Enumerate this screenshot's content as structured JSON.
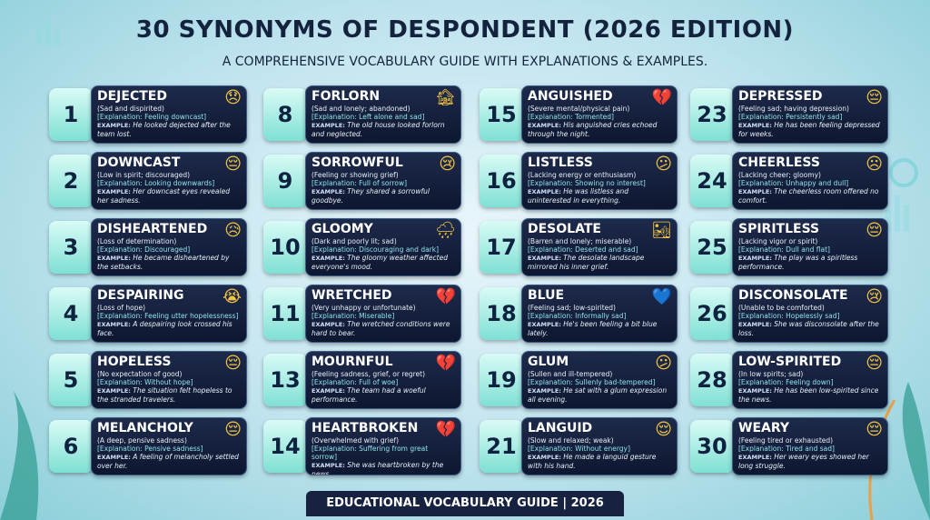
{
  "header": {
    "title": "30 SYNONYMS OF DESPONDENT (2026 EDITION)",
    "subtitle": "A COMPREHENSIVE VOCABULARY GUIDE WITH EXPLANATIONS & EXAMPLES."
  },
  "example_label": "EXAMPLE:",
  "columns": [
    {
      "cards": [
        {
          "number": 1,
          "word": "DEJECTED",
          "icon": "😞",
          "definition": "(Sad and dispirited)",
          "explanation": "[Explanation: Feeling downcast]",
          "example": "He looked dejected after the team lost."
        },
        {
          "number": 2,
          "word": "DOWNCAST",
          "icon": "😔",
          "definition": "(Low in spirit; discouraged)",
          "explanation": "[Explanation: Looking downwards]",
          "example": "Her downcast eyes revealed her sadness."
        },
        {
          "number": 3,
          "word": "DISHEARTENED",
          "icon": "😥",
          "definition": "(Loss of determination)",
          "explanation": "[Explanation: Discouraged]",
          "example": "He became disheartened by the setbacks."
        },
        {
          "number": 4,
          "word": "DESPAIRING",
          "icon": "😭",
          "definition": "(Loss of hope)",
          "explanation": "[Explanation: Feeling utter hopelessness]",
          "example": "A despairing look crossed his face."
        },
        {
          "number": 5,
          "word": "HOPELESS",
          "icon": "😔",
          "definition": "(No expectation of good)",
          "explanation": "[Explanation: Without hope]",
          "example": "The situation felt hopeless to the stranded travelers."
        },
        {
          "number": 6,
          "word": "MELANCHOLY",
          "icon": "😔",
          "definition": "(A deep, pensive sadness)",
          "explanation": "[Explanation: Pensive sadness]",
          "example": "A feeling of melancholy settled over her."
        }
      ]
    },
    {
      "cards": [
        {
          "number": 8,
          "word": "FORLORN",
          "icon": "🏚",
          "definition": "(Sad and lonely; abandoned)",
          "explanation": "[Explanation: Left alone and sad]",
          "example": "The old house looked forlorn and neglected."
        },
        {
          "number": 9,
          "word": "SORROWFUL",
          "icon": "😢",
          "definition": "(Feeling or showing grief)",
          "explanation": "[Explanation: Full of sorrow]",
          "example": "They shared a sorrowful goodbye."
        },
        {
          "number": 10,
          "word": "GLOOMY",
          "icon": "🌧",
          "definition": "(Dark and poorly lit; sad)",
          "explanation": "[Explanation: Discouraging and dark]",
          "example": "The gloomy weather affected everyone's mood."
        },
        {
          "number": 11,
          "word": "WRETCHED",
          "icon": "💔",
          "definition": "(Very unhappy or unfortunate)",
          "explanation": "[Explanation: Miserable]",
          "example": "The wretched conditions were hard to bear."
        },
        {
          "number": 13,
          "word": "MOURNFUL",
          "icon": "💔",
          "definition": "(Feeling sadness, grief, or regret)",
          "explanation": "[Explanation: Full of woe]",
          "example": "The team had a woeful performance."
        },
        {
          "number": 14,
          "word": "HEARTBROKEN",
          "icon": "💔",
          "definition": "(Overwhelmed with grief)",
          "explanation": "[Explanation: Suffering from great sorrow]",
          "example": "She was heartbroken by the news."
        }
      ]
    },
    {
      "cards": [
        {
          "number": 15,
          "word": "ANGUISHED",
          "icon": "💔",
          "definition": "(Severe mental/physical pain)",
          "explanation": "[Explanation: Tormented]",
          "example": "His anguished cries echoed through the night."
        },
        {
          "number": 16,
          "word": "LISTLESS",
          "icon": "😕",
          "definition": "(Lacking energy or enthusiasm)",
          "explanation": "[Explanation: Showing no interest]",
          "example": "He was listless and uninterested in everything."
        },
        {
          "number": 17,
          "word": "DESOLATE",
          "icon": "🏜",
          "definition": "(Barren and lonely; miserable)",
          "explanation": "[Explanation: Deserted and sad]",
          "example": "The desolate landscape mirrored his inner grief."
        },
        {
          "number": 18,
          "word": "BLUE",
          "icon": "💙",
          "definition": "(Feeling sad; low-spirited)",
          "explanation": "[Explanation: Informally sad]",
          "example": "He's been feeling a bit blue lately."
        },
        {
          "number": 19,
          "word": "GLUM",
          "icon": "😕",
          "definition": "(Sullen and ill-tempered)",
          "explanation": "[Explanation: Sullenly bad-tempered]",
          "example": "He sat with a glum expression all evening."
        },
        {
          "number": 21,
          "word": "LANGUID",
          "icon": "😌",
          "definition": "(Slow and relaxed; weak)",
          "explanation": "[Explanation: Without energy]",
          "example": "He made a languid gesture with his hand."
        }
      ]
    },
    {
      "cards": [
        {
          "number": 23,
          "word": "DEPRESSED",
          "icon": "😔",
          "definition": "(Feeling sad; having depression)",
          "explanation": "[Explanation: Persistently sad]",
          "example": "He has been feeling depressed for weeks."
        },
        {
          "number": 24,
          "word": "CHEERLESS",
          "icon": "☹",
          "definition": "(Lacking cheer; gloomy)",
          "explanation": "[Explanation: Unhappy and dull]",
          "example": "The cheerless room offered no comfort."
        },
        {
          "number": 25,
          "word": "SPIRITLESS",
          "icon": "😔",
          "definition": "(Lacking vigor or spirit)",
          "explanation": "[Explanation: Dull and flat]",
          "example": "The play was a spiritless performance."
        },
        {
          "number": 26,
          "word": "DISCONSOLATE",
          "icon": "😢",
          "definition": "(Unable to be comforted)",
          "explanation": "[Explanation: Hopelessly sad]",
          "example": "She was disconsolate after the loss."
        },
        {
          "number": 28,
          "word": "LOW-SPIRITED",
          "icon": "😔",
          "definition": "(In low spirits; sad)",
          "explanation": "[Explanation: Feeling down]",
          "example": "He has been low-spirited since the news."
        },
        {
          "number": 30,
          "word": "WEARY",
          "icon": "😔",
          "definition": "(Feeling tired or exhausted)",
          "explanation": "[Explanation: Tired and sad]",
          "example": "Her weary eyes showed her long struggle."
        }
      ]
    }
  ],
  "footer": "EDUCATIONAL VOCABULARY GUIDE | 2026"
}
